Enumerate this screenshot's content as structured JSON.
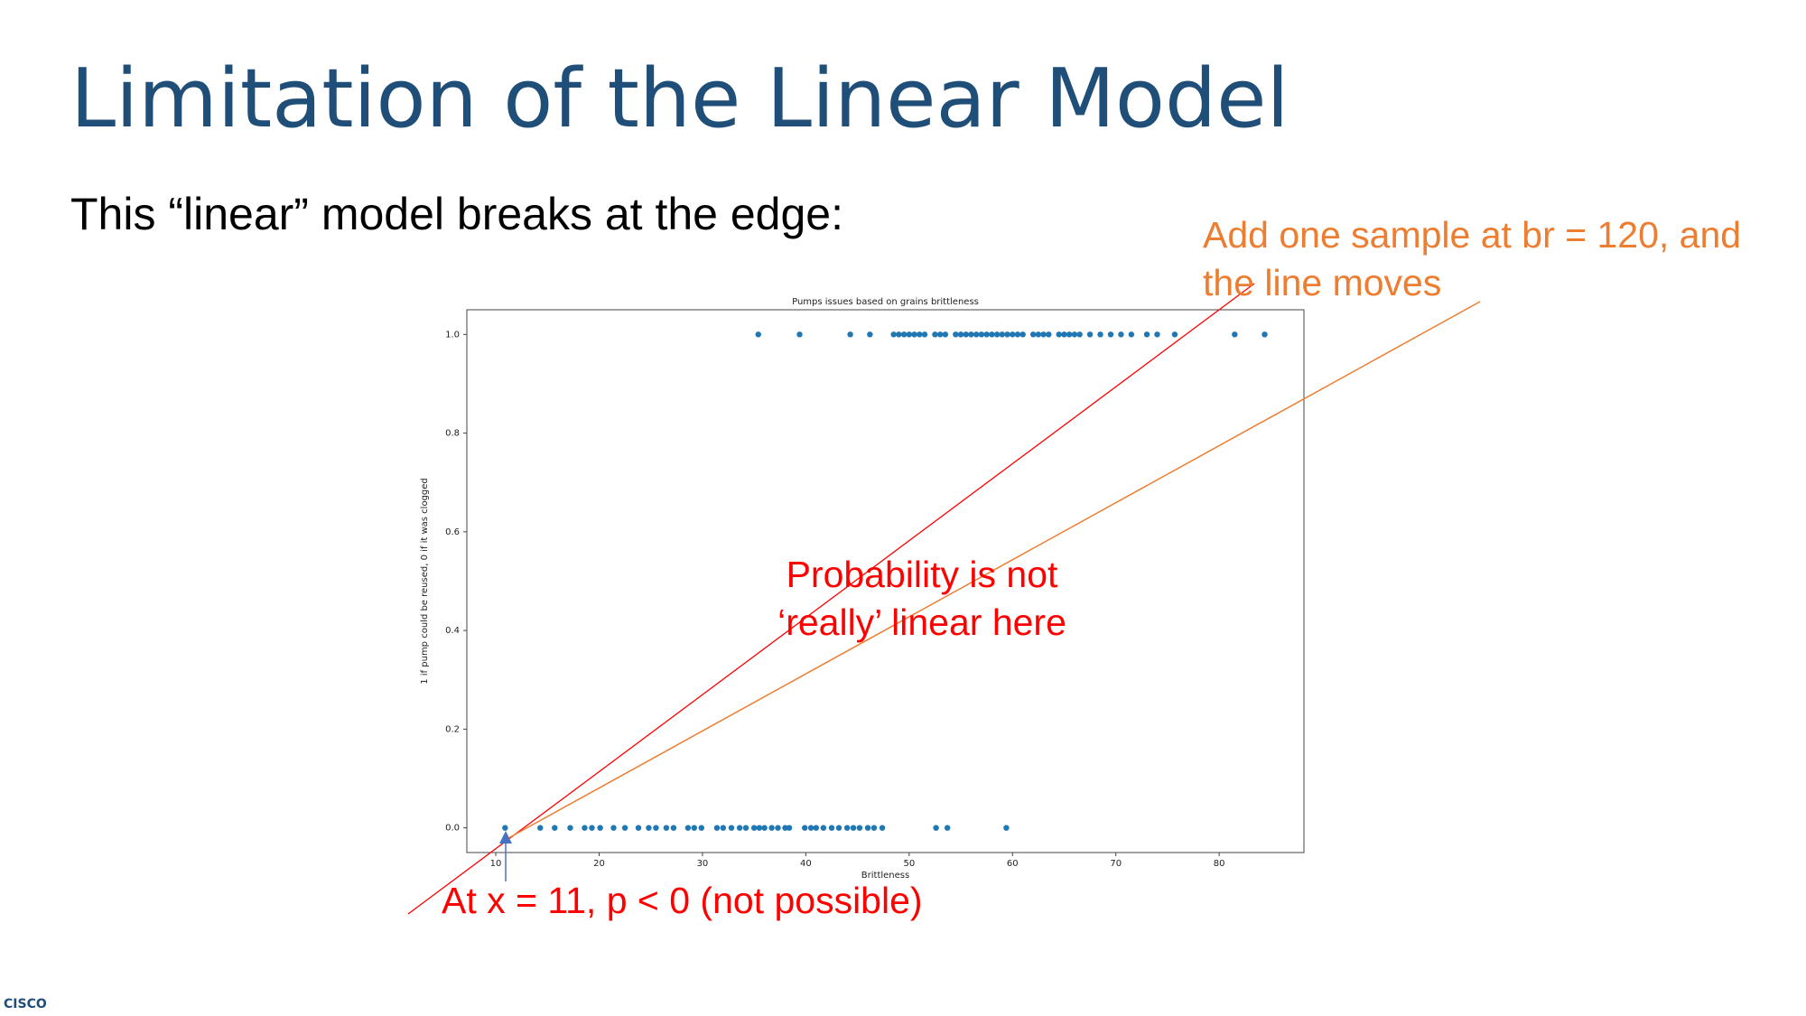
{
  "title": "Limitation of the Linear Model",
  "subtitle": "This “linear” model breaks at the edge:",
  "annotations": {
    "orange": [
      "Add one sample at br = 120, and",
      "the line moves"
    ],
    "center": [
      "Probability is not",
      "‘really’ linear here"
    ],
    "bottom": "At x = 11, p < 0  (not possible)"
  },
  "logo": "CISCO",
  "chart_data": {
    "type": "scatter",
    "title": "Pumps issues based on grains brittleness",
    "x_label": "Brittleness",
    "y_label": "1 if pump could be reused, 0 if it was clogged",
    "color": "#1f77b4",
    "x": [
      35.4,
      39.4,
      44.3,
      46.2,
      48.5,
      49,
      49.5,
      50,
      50.5,
      51,
      51.5,
      52.5,
      53,
      53.5,
      54.5,
      55,
      55.5,
      56,
      56.5,
      57,
      57.5,
      58,
      58.5,
      59,
      59.5,
      60,
      60.5,
      61,
      62,
      62.5,
      63,
      63.5,
      64.5,
      65,
      65.5,
      66,
      66.5,
      67.5,
      68.5,
      69.5,
      70.5,
      71.5,
      73,
      74,
      75.7,
      81.5,
      84.4,
      10.9,
      14.3,
      15.7,
      17.2,
      18.6,
      19.3,
      20.1,
      21.4,
      22.5,
      23.8,
      24.8,
      25.5,
      26.5,
      27.2,
      28.6,
      29.2,
      29.9,
      31.4,
      32,
      32.8,
      33.6,
      34.2,
      35,
      35.5,
      36,
      36.7,
      37.3,
      38,
      38.4,
      39.9,
      40.5,
      41,
      41.7,
      42.5,
      43.2,
      44,
      44.6,
      45.2,
      46,
      46.6,
      47.4,
      52.6,
      53.7,
      59.4
    ],
    "values": [
      1,
      1,
      1,
      1,
      1,
      1,
      1,
      1,
      1,
      1,
      1,
      1,
      1,
      1,
      1,
      1,
      1,
      1,
      1,
      1,
      1,
      1,
      1,
      1,
      1,
      1,
      1,
      1,
      1,
      1,
      1,
      1,
      1,
      1,
      1,
      1,
      1,
      1,
      1,
      1,
      1,
      1,
      1,
      1,
      1,
      1,
      1,
      0,
      0,
      0,
      0,
      0,
      0,
      0,
      0,
      0,
      0,
      0,
      0,
      0,
      0,
      0,
      0,
      0,
      0,
      0,
      0,
      0,
      0,
      0,
      0,
      0,
      0,
      0,
      0,
      0,
      0,
      0,
      0,
      0,
      0,
      0,
      0,
      0,
      0,
      0,
      0,
      0,
      0,
      0,
      0
    ],
    "xlim": [
      7.2,
      88.2
    ],
    "ylim": [
      -0.05,
      1.05
    ],
    "xticks": [
      10,
      20,
      30,
      40,
      50,
      60,
      70,
      80
    ],
    "yticks": [
      {
        "value": 0,
        "label": "0.0"
      },
      0.2,
      0.4,
      0.6,
      0.8,
      {
        "value": 1,
        "label": "1.0"
      }
    ]
  }
}
